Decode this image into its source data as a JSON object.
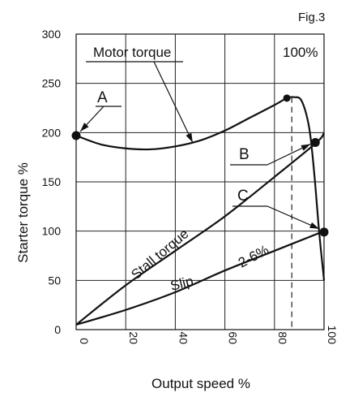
{
  "figure_label": "Fig.3",
  "chart_data": {
    "type": "line",
    "xlabel": "Output speed %",
    "ylabel": "Starter torque %",
    "xlim": [
      0,
      100
    ],
    "ylim": [
      0,
      300
    ],
    "x_ticks": [
      "0",
      "20",
      "40",
      "60",
      "80",
      "100"
    ],
    "y_ticks": [
      "0",
      "50",
      "100",
      "150",
      "200",
      "250",
      "300"
    ],
    "grid": true,
    "series": [
      {
        "name": "Motor torque",
        "x": [
          0,
          10,
          20,
          30,
          40,
          50,
          60,
          70,
          80,
          85,
          88,
          91,
          94,
          96,
          98,
          100
        ],
        "y": [
          197,
          188,
          184,
          183,
          186,
          192,
          202,
          215,
          228,
          235,
          236,
          232,
          205,
          160,
          100,
          50
        ]
      },
      {
        "name": "Stall torque",
        "x": [
          0,
          20,
          40,
          60,
          80,
          97,
          100
        ],
        "y": [
          5,
          45,
          80,
          115,
          155,
          190,
          200
        ]
      },
      {
        "name": "Slip",
        "x": [
          0,
          20,
          40,
          60,
          80,
          100
        ],
        "y": [
          5,
          20,
          38,
          60,
          80,
          100
        ]
      }
    ],
    "reference_line": {
      "x": 87,
      "style": "dashed"
    },
    "points": [
      {
        "label": "A",
        "x": 0,
        "y": 197
      },
      {
        "label": "B",
        "x": 96.5,
        "y": 190
      },
      {
        "label": "C",
        "x": 100,
        "y": 99
      }
    ],
    "annotations": [
      "100%",
      "2-6%"
    ]
  }
}
